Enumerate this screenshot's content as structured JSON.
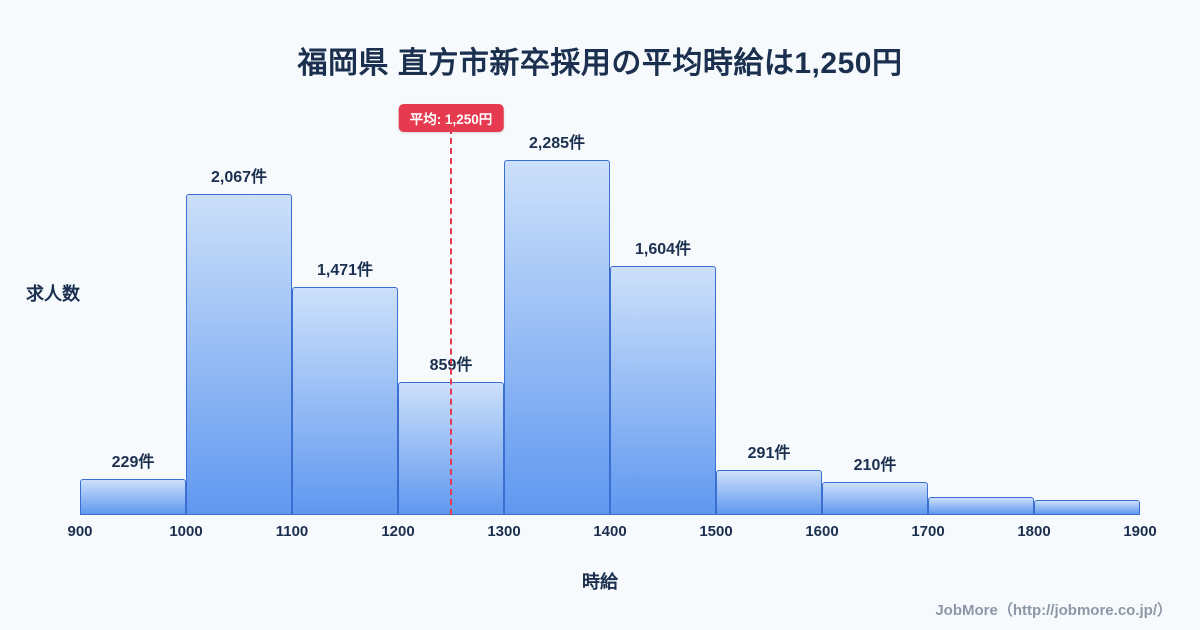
{
  "title": "福岡県 直方市新卒採用の平均時給は1,250円",
  "ylabel": "求人数",
  "xlabel": "時給",
  "footer_credit": "JobMore（http://jobmore.co.jp/）",
  "mean_badge_label": "平均: 1,250円",
  "colors": {
    "accent_red": "#e53a50",
    "bar_fill_top": "#cce0fa",
    "bar_fill_bottom": "#6098f0",
    "bar_border": "#3a6ed0",
    "text_dark": "#1b2f4e",
    "background": "#f7fafd"
  },
  "chart_data": {
    "type": "bar",
    "subtype": "histogram",
    "title": "福岡県 直方市新卒採用の平均時給は1,250円",
    "xlabel": "時給",
    "ylabel": "求人数",
    "x_range": [
      900,
      1900
    ],
    "bin_width": 100,
    "x_ticks": [
      "900",
      "1000",
      "1100",
      "1200",
      "1300",
      "1400",
      "1500",
      "1600",
      "1700",
      "1800",
      "1900"
    ],
    "bin_edges": [
      900,
      1000,
      1100,
      1200,
      1300,
      1400,
      1500,
      1600,
      1700,
      1800,
      1900
    ],
    "values": [
      229,
      2067,
      1471,
      859,
      2285,
      1604,
      291,
      210,
      115,
      95
    ],
    "bar_labels": [
      "229件",
      "2,067件",
      "1,471件",
      "859件",
      "2,285件",
      "1,604件",
      "291件",
      "210件",
      "",
      ""
    ],
    "mean_value": 1250,
    "mean_label": "平均: 1,250円",
    "ylim": [
      0,
      2480
    ],
    "grid": false,
    "legend": "none"
  }
}
